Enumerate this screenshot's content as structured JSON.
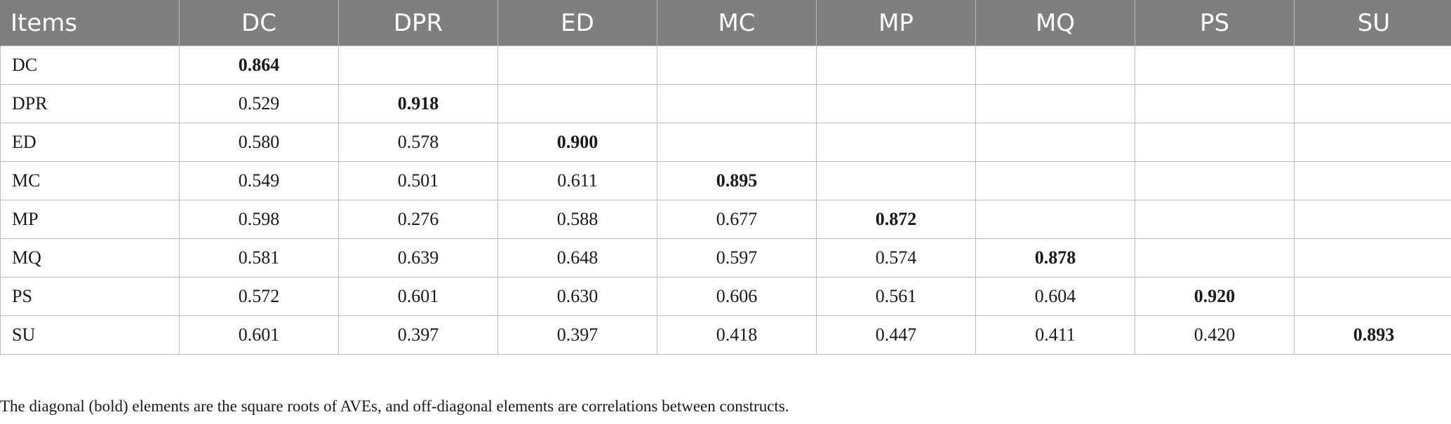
{
  "table": {
    "headers": [
      "Items",
      "DC",
      "DPR",
      "ED",
      "MC",
      "MP",
      "MQ",
      "PS",
      "SU"
    ],
    "rows": [
      {
        "label": "DC",
        "values": [
          "0.864",
          "",
          "",
          "",
          "",
          "",
          "",
          ""
        ]
      },
      {
        "label": "DPR",
        "values": [
          "0.529",
          "0.918",
          "",
          "",
          "",
          "",
          "",
          ""
        ]
      },
      {
        "label": "ED",
        "values": [
          "0.580",
          "0.578",
          "0.900",
          "",
          "",
          "",
          "",
          ""
        ]
      },
      {
        "label": "MC",
        "values": [
          "0.549",
          "0.501",
          "0.611",
          "0.895",
          "",
          "",
          "",
          ""
        ]
      },
      {
        "label": "MP",
        "values": [
          "0.598",
          "0.276",
          "0.588",
          "0.677",
          "0.872",
          "",
          "",
          ""
        ]
      },
      {
        "label": "MQ",
        "values": [
          "0.581",
          "0.639",
          "0.648",
          "0.597",
          "0.574",
          "0.878",
          "",
          ""
        ]
      },
      {
        "label": "PS",
        "values": [
          "0.572",
          "0.601",
          "0.630",
          "0.606",
          "0.561",
          "0.604",
          "0.920",
          ""
        ]
      },
      {
        "label": "SU",
        "values": [
          "0.601",
          "0.397",
          "0.397",
          "0.418",
          "0.447",
          "0.411",
          "0.420",
          "0.893"
        ]
      }
    ]
  },
  "footnote": "The diagonal (bold) elements are the square roots of AVEs, and off-diagonal elements are correlations between constructs.",
  "colors": {
    "header_bg": "#7f7f7f",
    "header_text": "#ffffff",
    "grid": "#bdbdbd"
  }
}
